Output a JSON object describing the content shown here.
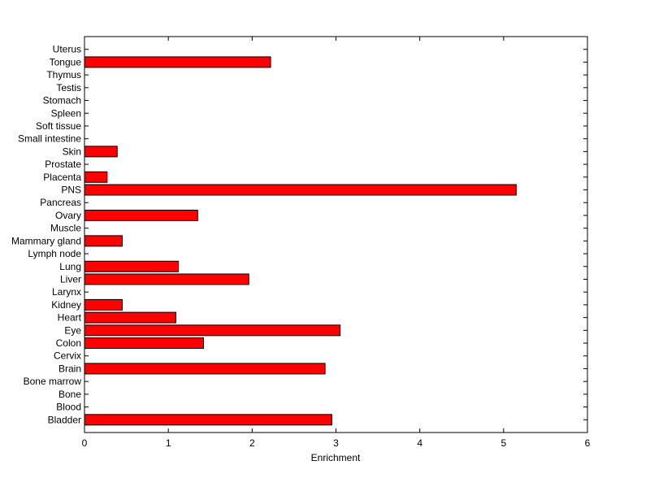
{
  "chart_data": {
    "type": "bar",
    "orientation": "horizontal",
    "title": "",
    "xlabel": "Enrichment",
    "ylabel": "",
    "xlim": [
      0,
      6
    ],
    "xticks": [
      "0",
      "1",
      "2",
      "3",
      "4",
      "5",
      "6"
    ],
    "grid": false,
    "bar_color": "#ff0000",
    "categories": [
      "Bladder",
      "Blood",
      "Bone",
      "Bone marrow",
      "Brain",
      "Cervix",
      "Colon",
      "Eye",
      "Heart",
      "Kidney",
      "Larynx",
      "Liver",
      "Lung",
      "Lymph node",
      "Mammary gland",
      "Muscle",
      "Ovary",
      "Pancreas",
      "PNS",
      "Placenta",
      "Prostate",
      "Skin",
      "Small intestine",
      "Soft tissue",
      "Spleen",
      "Stomach",
      "Testis",
      "Thymus",
      "Tongue",
      "Uterus"
    ],
    "values": [
      2.95,
      0,
      0,
      0,
      2.87,
      0,
      1.42,
      3.05,
      1.09,
      0.45,
      0,
      1.96,
      1.12,
      0,
      0.45,
      0,
      1.35,
      0,
      5.15,
      0.27,
      0,
      0.39,
      0,
      0,
      0,
      0,
      0,
      0,
      2.22,
      0
    ]
  }
}
